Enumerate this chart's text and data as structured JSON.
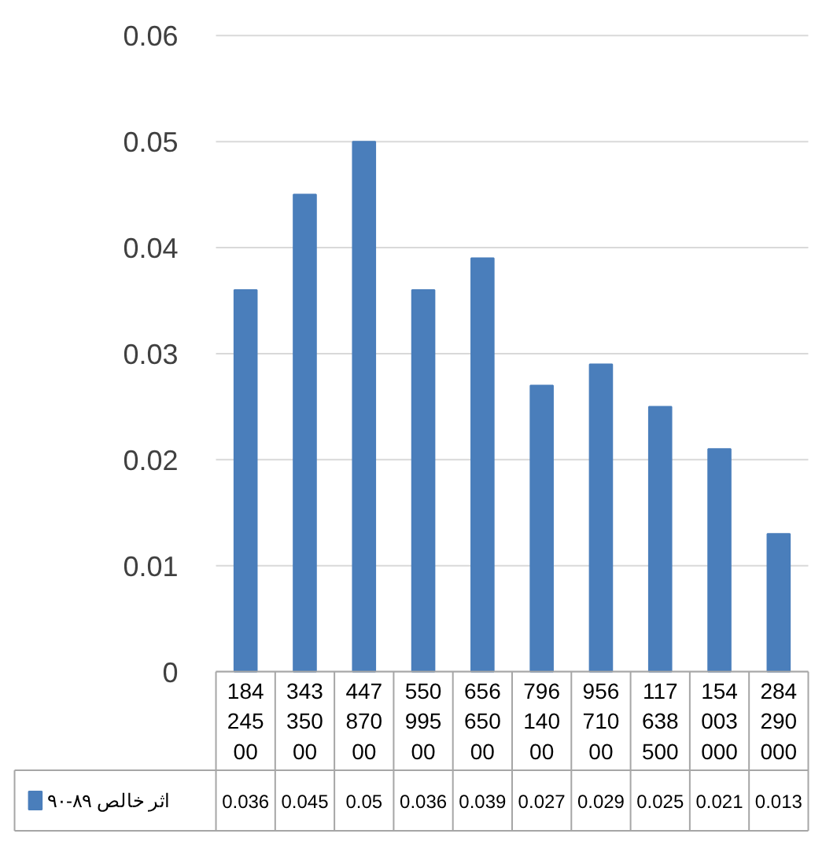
{
  "chart_data": {
    "type": "bar",
    "categories": [
      "18424500",
      "34335000",
      "44787000",
      "55099500",
      "65665000",
      "79614000",
      "95671000",
      "117638500",
      "154003000",
      "284290000"
    ],
    "series": [
      {
        "name": "اثر خالص ۸۹-۹۰",
        "color": "#4a7ebb",
        "values": [
          0.036,
          0.045,
          0.05,
          0.036,
          0.039,
          0.027,
          0.029,
          0.025,
          0.021,
          0.013
        ]
      }
    ],
    "ylim": [
      0,
      0.06
    ],
    "yticks": [
      0,
      0.01,
      0.02,
      0.03,
      0.04,
      0.05,
      0.06
    ],
    "grid": "y",
    "data_labels": true,
    "legend": "bottom"
  }
}
